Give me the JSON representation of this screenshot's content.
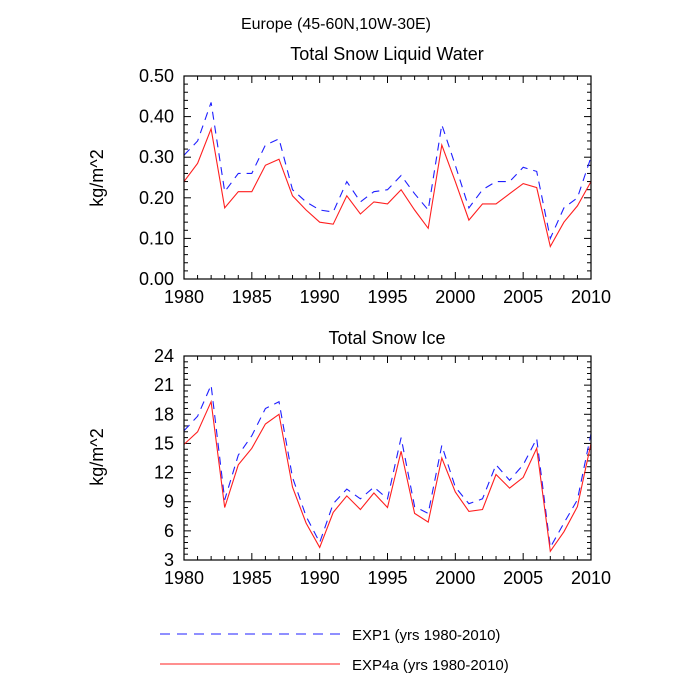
{
  "suptitle": "Europe (45-60N,10W-30E)",
  "legend": [
    {
      "label": "EXP1 (yrs 1980-2010)",
      "color": "#1f1fff",
      "dash": "dashed"
    },
    {
      "label": "EXP4a (yrs 1980-2010)",
      "color": "#ff1f1f",
      "dash": "solid"
    }
  ],
  "chart_data": [
    {
      "type": "line",
      "title": "Total Snow Liquid Water",
      "xlabel": "",
      "ylabel": "kg/m^2",
      "xlim": [
        1980,
        2010
      ],
      "ylim": [
        0.0,
        0.5
      ],
      "xticks": [
        1980,
        1985,
        1990,
        1995,
        2000,
        2005,
        2010
      ],
      "yticks": [
        0.0,
        0.1,
        0.2,
        0.3,
        0.4,
        0.5
      ],
      "ytick_labels": [
        "0.00",
        "0.10",
        "0.20",
        "0.30",
        "0.40",
        "0.50"
      ],
      "x": [
        1980,
        1981,
        1982,
        1983,
        1984,
        1985,
        1986,
        1987,
        1988,
        1989,
        1990,
        1991,
        1992,
        1993,
        1994,
        1995,
        1996,
        1997,
        1998,
        1999,
        2000,
        2001,
        2002,
        2003,
        2004,
        2005,
        2006,
        2007,
        2008,
        2009,
        2010
      ],
      "series": [
        {
          "name": "EXP1 (yrs 1980-2010)",
          "color": "#1f1fff",
          "dash": "dashed",
          "values": [
            0.305,
            0.34,
            0.435,
            0.215,
            0.26,
            0.26,
            0.33,
            0.345,
            0.22,
            0.19,
            0.17,
            0.165,
            0.24,
            0.19,
            0.215,
            0.22,
            0.255,
            0.21,
            0.17,
            0.38,
            0.28,
            0.175,
            0.22,
            0.24,
            0.24,
            0.275,
            0.265,
            0.1,
            0.175,
            0.2,
            0.3
          ]
        },
        {
          "name": "EXP4a (yrs 1980-2010)",
          "color": "#ff1f1f",
          "dash": "solid",
          "values": [
            0.24,
            0.285,
            0.37,
            0.175,
            0.215,
            0.215,
            0.28,
            0.295,
            0.205,
            0.17,
            0.14,
            0.135,
            0.205,
            0.16,
            0.19,
            0.185,
            0.22,
            0.17,
            0.125,
            0.33,
            0.24,
            0.145,
            0.185,
            0.185,
            0.21,
            0.235,
            0.225,
            0.08,
            0.14,
            0.18,
            0.24
          ]
        }
      ]
    },
    {
      "type": "line",
      "title": "Total Snow Ice",
      "xlabel": "",
      "ylabel": "kg/m^2",
      "xlim": [
        1980,
        2010
      ],
      "ylim": [
        3,
        24
      ],
      "xticks": [
        1980,
        1985,
        1990,
        1995,
        2000,
        2005,
        2010
      ],
      "yticks": [
        3,
        6,
        9,
        12,
        15,
        18,
        21,
        24
      ],
      "ytick_labels": [
        "3",
        "6",
        "9",
        "12",
        "15",
        "18",
        "21",
        "24"
      ],
      "x": [
        1980,
        1981,
        1982,
        1983,
        1984,
        1985,
        1986,
        1987,
        1988,
        1989,
        1990,
        1991,
        1992,
        1993,
        1994,
        1995,
        1996,
        1997,
        1998,
        1999,
        2000,
        2001,
        2002,
        2003,
        2004,
        2005,
        2006,
        2007,
        2008,
        2009,
        2010
      ],
      "series": [
        {
          "name": "EXP1 (yrs 1980-2010)",
          "color": "#1f1fff",
          "dash": "dashed",
          "values": [
            16.3,
            17.8,
            21.0,
            9.2,
            13.8,
            15.8,
            18.6,
            19.3,
            11.5,
            7.5,
            4.8,
            8.8,
            10.3,
            9.3,
            10.5,
            9.3,
            15.6,
            8.5,
            7.8,
            14.8,
            10.5,
            8.8,
            9.3,
            12.8,
            11.2,
            12.8,
            15.5,
            4.3,
            6.8,
            9.2,
            16.0
          ]
        },
        {
          "name": "EXP4a (yrs 1980-2010)",
          "color": "#ff1f1f",
          "dash": "solid",
          "values": [
            14.9,
            16.2,
            19.3,
            8.4,
            12.8,
            14.5,
            17.0,
            18.0,
            10.5,
            6.8,
            4.3,
            7.9,
            9.6,
            8.2,
            9.9,
            8.4,
            14.2,
            7.8,
            6.9,
            13.5,
            10.0,
            8.0,
            8.2,
            11.8,
            10.4,
            11.5,
            14.5,
            3.9,
            5.9,
            8.5,
            15.0
          ]
        }
      ]
    }
  ]
}
